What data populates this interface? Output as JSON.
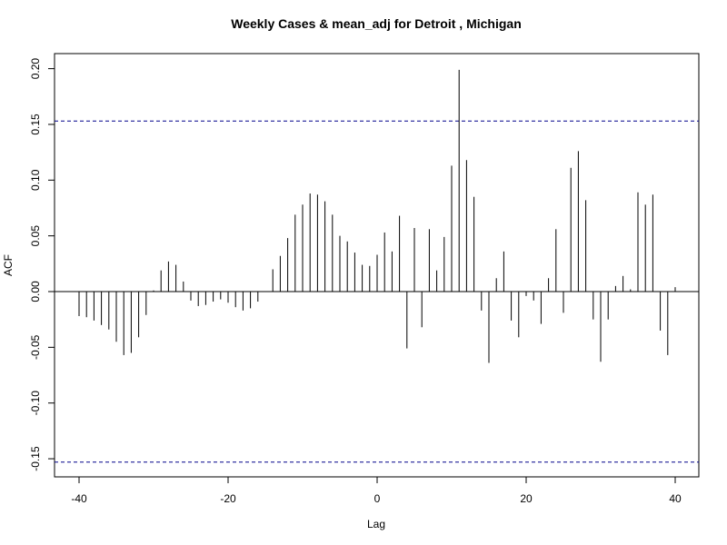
{
  "chart_data": {
    "type": "bar",
    "title": "Weekly Cases & mean_adj for Detroit , Michigan",
    "xlabel": "Lag",
    "ylabel": "ACF",
    "xlim": [
      -40,
      40
    ],
    "ylim": [
      -0.165,
      0.21
    ],
    "x_ticks": [
      "-40",
      "-20",
      "0",
      "20",
      "40"
    ],
    "y_ticks": [
      "-0.15",
      "-0.10",
      "-0.05",
      "0.00",
      "0.05",
      "0.10",
      "0.15",
      "0.20"
    ],
    "confidence_bound": 0.153,
    "zero_line": true,
    "grid": false,
    "colors": {
      "bars": "#000000",
      "bounds": "#00008b",
      "frame": "#000000"
    },
    "x": [
      -40,
      -39,
      -38,
      -37,
      -36,
      -35,
      -34,
      -33,
      -32,
      -31,
      -30,
      -29,
      -28,
      -27,
      -26,
      -25,
      -24,
      -23,
      -22,
      -21,
      -20,
      -19,
      -18,
      -17,
      -16,
      -15,
      -14,
      -13,
      -12,
      -11,
      -10,
      -9,
      -8,
      -7,
      -6,
      -5,
      -4,
      -3,
      -2,
      -1,
      0,
      1,
      2,
      3,
      4,
      5,
      6,
      7,
      8,
      9,
      10,
      11,
      12,
      13,
      14,
      15,
      16,
      17,
      18,
      19,
      20,
      21,
      22,
      23,
      24,
      25,
      26,
      27,
      28,
      29,
      30,
      31,
      32,
      33,
      34,
      35,
      36,
      37,
      38,
      39,
      40
    ],
    "values": [
      -0.022,
      -0.023,
      -0.026,
      -0.03,
      -0.034,
      -0.045,
      -0.057,
      -0.055,
      -0.041,
      -0.021,
      0.001,
      0.019,
      0.027,
      0.024,
      0.009,
      -0.008,
      -0.013,
      -0.012,
      -0.009,
      -0.007,
      -0.01,
      -0.014,
      -0.017,
      -0.015,
      -0.009,
      0.0,
      0.02,
      0.032,
      0.048,
      0.069,
      0.078,
      0.088,
      0.087,
      0.081,
      0.069,
      0.05,
      0.045,
      0.035,
      0.024,
      0.023,
      0.033,
      0.053,
      0.036,
      0.068,
      -0.051,
      0.057,
      -0.032,
      0.056,
      0.019,
      0.049,
      0.113,
      0.199,
      0.118,
      0.085,
      -0.017,
      -0.064,
      0.012,
      0.036,
      -0.026,
      -0.041,
      -0.004,
      -0.008,
      -0.029,
      0.012,
      0.056,
      -0.019,
      0.111,
      0.126,
      0.082,
      -0.025,
      -0.063,
      -0.025,
      0.005,
      0.014,
      0.002,
      0.089,
      0.078,
      0.087,
      -0.035,
      -0.057,
      0.004
    ]
  }
}
